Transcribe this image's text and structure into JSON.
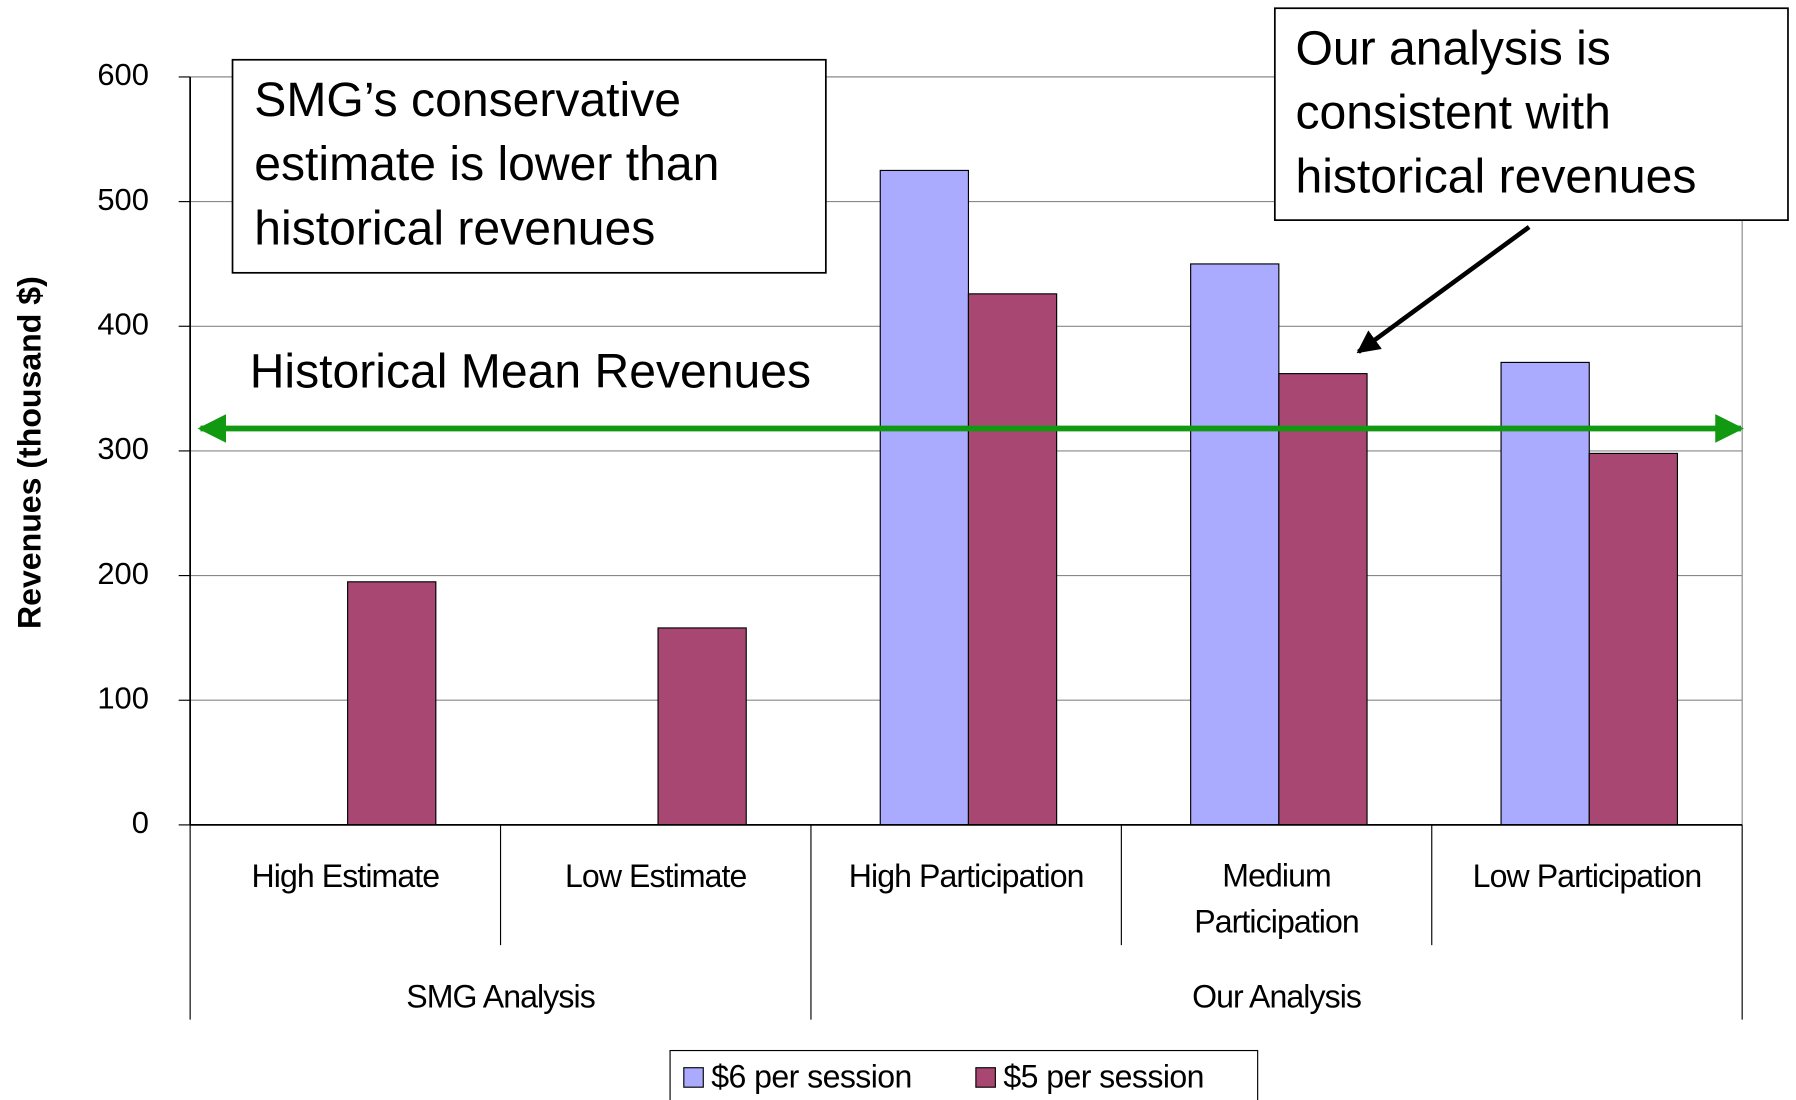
{
  "chart_data": {
    "type": "bar",
    "ylabel": "Revenues (thousand $)",
    "categories": [
      "High Estimate",
      "Low Estimate",
      "High Participation",
      "Medium Participation",
      "Low Participation"
    ],
    "groups": [
      {
        "label": "SMG Analysis",
        "span": [
          0,
          1
        ]
      },
      {
        "label": "Our Analysis",
        "span": [
          2,
          4
        ]
      }
    ],
    "series": [
      {
        "name": "$6 per session",
        "color": "#aaaaff",
        "values": [
          null,
          null,
          525,
          450,
          371
        ]
      },
      {
        "name": "$5 per session",
        "color": "#a84872",
        "values": [
          195,
          158,
          426,
          362,
          298
        ]
      }
    ],
    "ylim": [
      0,
      600
    ],
    "yticks": [
      0,
      100,
      200,
      300,
      400,
      500,
      600
    ],
    "grid": true,
    "legend": "bottom",
    "reference_line": {
      "label": "Historical Mean Revenues",
      "value": 318,
      "color": "#119911"
    },
    "annotations": [
      {
        "lines": [
          "SMG’s conservative",
          "estimate is lower than",
          "historical revenues"
        ]
      },
      {
        "lines": [
          "Our analysis is",
          "consistent with",
          "historical revenues"
        ]
      }
    ]
  }
}
